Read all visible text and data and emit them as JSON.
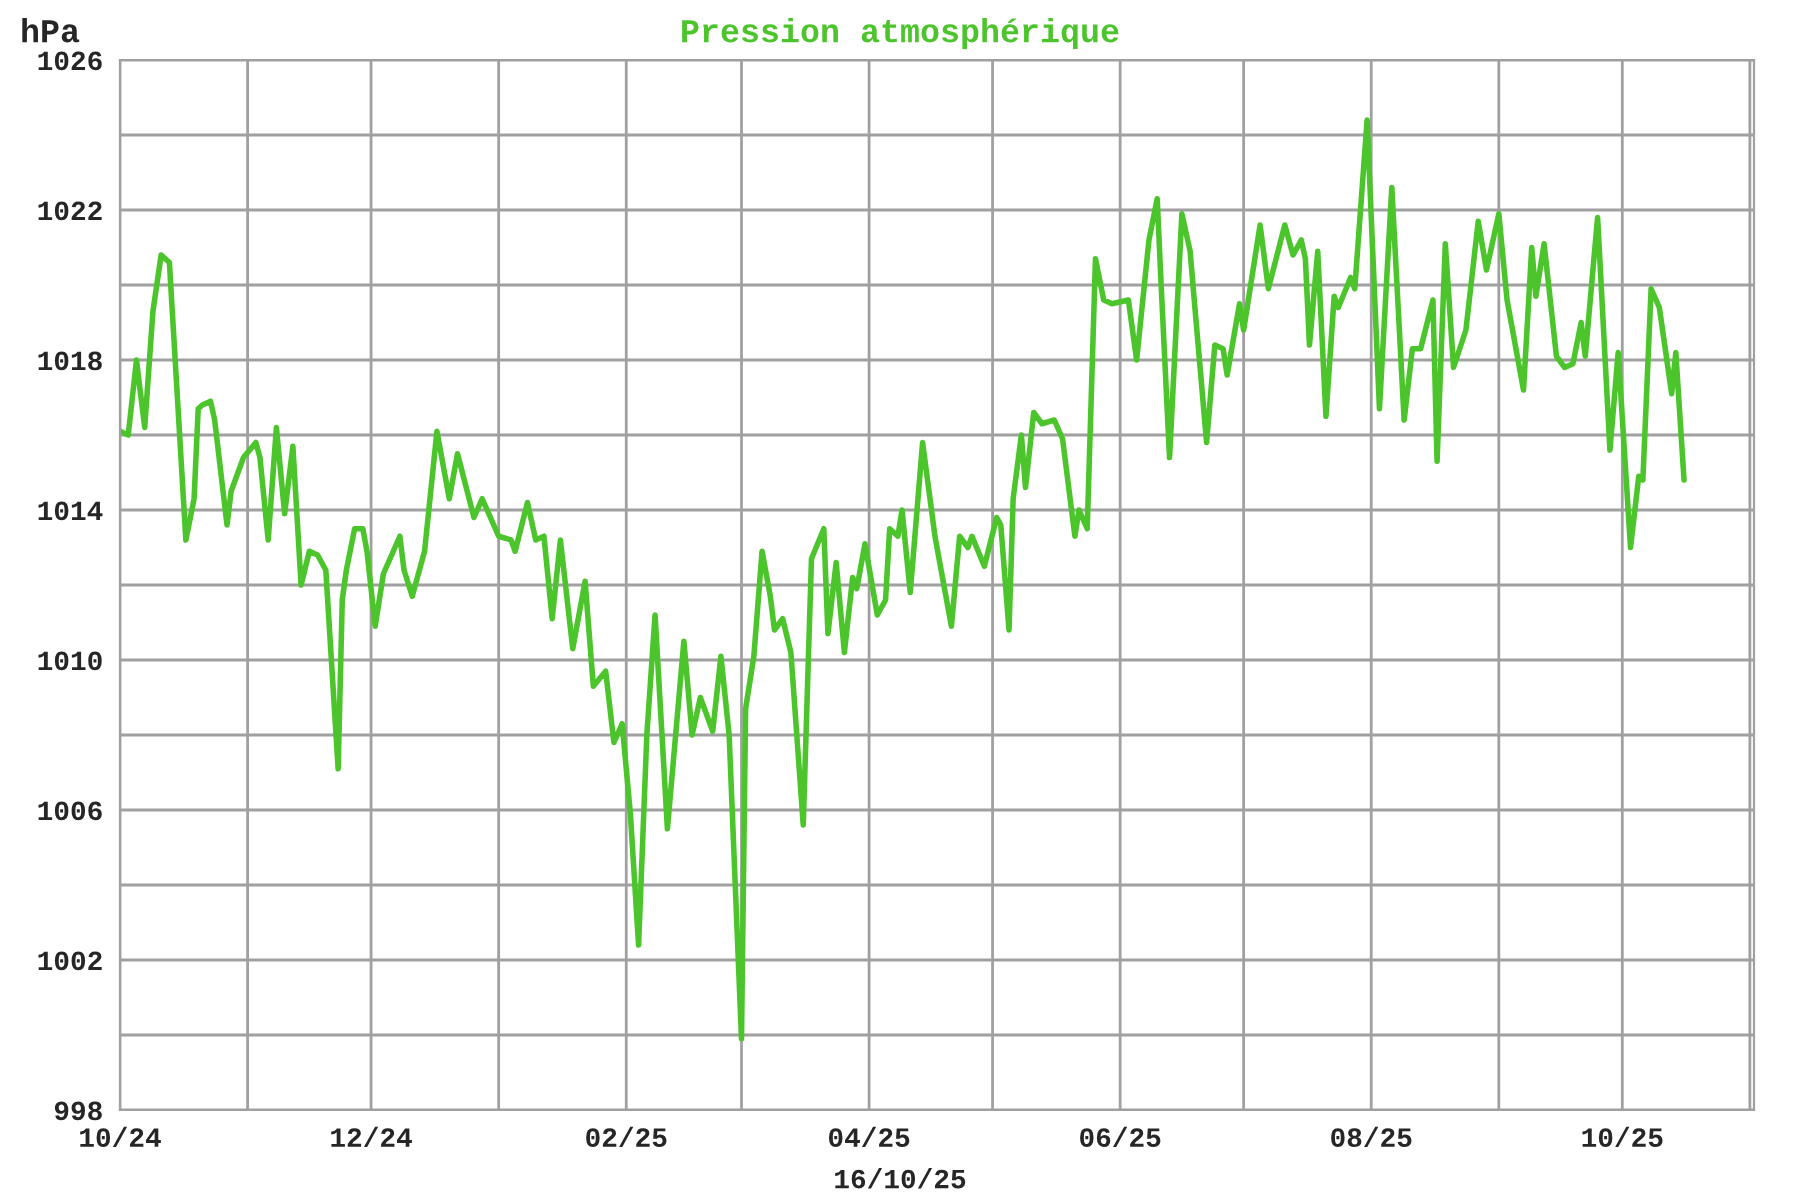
{
  "chart_data": {
    "type": "line",
    "title": "Pression atmosphérique",
    "ylabel": "hPa",
    "annotations": [
      "16/10/25"
    ],
    "x": [
      "2024-10-01",
      "2024-10-03",
      "2024-10-05",
      "2024-10-07",
      "2024-10-09",
      "2024-10-11",
      "2024-10-13",
      "2024-10-17",
      "2024-10-19",
      "2024-10-20",
      "2024-10-21",
      "2024-10-23",
      "2024-10-24",
      "2024-10-27",
      "2024-10-28",
      "2024-10-31",
      "2024-11-03",
      "2024-11-04",
      "2024-11-06",
      "2024-11-08",
      "2024-11-10",
      "2024-11-12",
      "2024-11-14",
      "2024-11-16",
      "2024-11-18",
      "2024-11-20",
      "2024-11-23",
      "2024-11-24",
      "2024-11-25",
      "2024-11-27",
      "2024-11-29",
      "2024-11-30",
      "2024-12-02",
      "2024-12-04",
      "2024-12-08",
      "2024-12-09",
      "2024-12-11",
      "2024-12-14",
      "2024-12-17",
      "2024-12-20",
      "2024-12-22",
      "2024-12-26",
      "2024-12-28",
      "2025-01-01",
      "2025-01-04",
      "2025-01-05",
      "2025-01-08",
      "2025-01-10",
      "2025-01-12",
      "2025-01-14",
      "2025-01-16",
      "2025-01-19",
      "2025-01-22",
      "2025-01-24",
      "2025-01-27",
      "2025-01-29",
      "2025-01-31",
      "2025-02-02",
      "2025-02-04",
      "2025-02-06",
      "2025-02-08",
      "2025-02-11",
      "2025-02-15",
      "2025-02-17",
      "2025-02-19",
      "2025-02-22",
      "2025-02-24",
      "2025-02-26",
      "2025-03-01",
      "2025-03-02",
      "2025-03-04",
      "2025-03-06",
      "2025-03-08",
      "2025-03-09",
      "2025-03-11",
      "2025-03-13",
      "2025-03-16",
      "2025-03-18",
      "2025-03-21",
      "2025-03-22",
      "2025-03-24",
      "2025-03-26",
      "2025-03-28",
      "2025-03-29",
      "2025-03-31",
      "2025-04-03",
      "2025-04-05",
      "2025-04-06",
      "2025-04-08",
      "2025-04-09",
      "2025-04-11",
      "2025-04-14",
      "2025-04-17",
      "2025-04-21",
      "2025-04-23",
      "2025-04-25",
      "2025-04-26",
      "2025-04-29",
      "2025-05-02",
      "2025-05-03",
      "2025-05-05",
      "2025-05-06",
      "2025-05-08",
      "2025-05-09",
      "2025-05-11",
      "2025-05-13",
      "2025-05-16",
      "2025-05-18",
      "2025-05-21",
      "2025-05-22",
      "2025-05-24",
      "2025-05-26",
      "2025-05-28",
      "2025-05-30",
      "2025-06-03",
      "2025-06-05",
      "2025-06-08",
      "2025-06-10",
      "2025-06-11",
      "2025-06-13",
      "2025-06-16",
      "2025-06-18",
      "2025-06-19",
      "2025-06-22",
      "2025-06-24",
      "2025-06-26",
      "2025-06-27",
      "2025-06-30",
      "2025-07-01",
      "2025-07-05",
      "2025-07-07",
      "2025-07-11",
      "2025-07-13",
      "2025-07-15",
      "2025-07-16",
      "2025-07-17",
      "2025-07-19",
      "2025-07-21",
      "2025-07-23",
      "2025-07-24",
      "2025-07-27",
      "2025-07-28",
      "2025-07-31",
      "2025-08-03",
      "2025-08-06",
      "2025-08-09",
      "2025-08-11",
      "2025-08-13",
      "2025-08-16",
      "2025-08-17",
      "2025-08-19",
      "2025-08-21",
      "2025-08-24",
      "2025-08-27",
      "2025-08-29",
      "2025-09-01",
      "2025-09-03",
      "2025-09-07",
      "2025-09-09",
      "2025-09-10",
      "2025-09-12",
      "2025-09-15",
      "2025-09-17",
      "2025-09-19",
      "2025-09-21",
      "2025-09-22",
      "2025-09-25",
      "2025-09-28",
      "2025-09-30",
      "2025-10-03",
      "2025-10-05",
      "2025-10-06",
      "2025-10-08",
      "2025-10-10",
      "2025-10-13",
      "2025-10-14",
      "2025-10-16"
    ],
    "series": [
      {
        "color": "#4cc52c",
        "values": [
          1016.1,
          1016.0,
          1018.0,
          1016.2,
          1019.3,
          1020.8,
          1020.6,
          1013.2,
          1014.3,
          1016.7,
          1016.8,
          1016.9,
          1016.4,
          1013.6,
          1014.5,
          1015.4,
          1015.8,
          1015.4,
          1013.2,
          1016.2,
          1013.9,
          1015.7,
          1012.0,
          1012.9,
          1012.8,
          1012.4,
          1007.1,
          1011.6,
          1012.4,
          1013.5,
          1013.5,
          1012.9,
          1010.9,
          1012.3,
          1013.3,
          1012.4,
          1011.7,
          1012.9,
          1016.1,
          1014.3,
          1015.5,
          1013.8,
          1014.3,
          1013.3,
          1013.2,
          1012.9,
          1014.2,
          1013.2,
          1013.3,
          1011.1,
          1013.2,
          1010.3,
          1012.1,
          1009.3,
          1009.7,
          1007.8,
          1008.3,
          1005.9,
          1002.4,
          1008.0,
          1011.2,
          1005.5,
          1010.5,
          1008.0,
          1009.0,
          1008.1,
          1010.1,
          1008.0,
          999.9,
          1008.7,
          1010.1,
          1012.9,
          1011.7,
          1010.8,
          1011.1,
          1010.2,
          1005.6,
          1012.7,
          1013.5,
          1010.7,
          1012.6,
          1010.2,
          1012.2,
          1011.9,
          1013.1,
          1011.2,
          1011.6,
          1013.5,
          1013.3,
          1014.0,
          1011.8,
          1015.8,
          1013.3,
          1010.9,
          1013.3,
          1013.0,
          1013.3,
          1012.5,
          1013.8,
          1013.6,
          1010.8,
          1014.3,
          1016.0,
          1014.6,
          1016.6,
          1016.3,
          1016.4,
          1015.9,
          1013.3,
          1014.0,
          1013.5,
          1020.7,
          1019.6,
          1019.5,
          1019.6,
          1018.0,
          1021.2,
          1022.3,
          1019.9,
          1015.4,
          1021.9,
          1020.9,
          1019.6,
          1015.8,
          1018.4,
          1018.3,
          1017.6,
          1019.5,
          1018.8,
          1021.6,
          1019.9,
          1021.6,
          1020.8,
          1021.2,
          1020.7,
          1018.4,
          1020.9,
          1016.5,
          1019.7,
          1019.4,
          1020.2,
          1019.9,
          1024.4,
          1016.7,
          1022.6,
          1016.4,
          1018.3,
          1018.3,
          1019.6,
          1015.3,
          1021.1,
          1017.8,
          1018.8,
          1021.7,
          1020.4,
          1021.9,
          1019.6,
          1017.2,
          1021.0,
          1019.7,
          1021.1,
          1018.1,
          1017.8,
          1017.9,
          1019.0,
          1018.1,
          1021.8,
          1015.6,
          1018.2,
          1013.0,
          1014.9,
          1014.8,
          1019.9,
          1019.4,
          1017.1,
          1018.2,
          1014.8
        ]
      }
    ],
    "xlim": [
      "2024-10-01",
      "2025-11-02"
    ],
    "xticks": [
      {
        "value": "2024-10-01",
        "label": "10/24"
      },
      {
        "value": "2024-11-01",
        "label": null
      },
      {
        "value": "2024-12-01",
        "label": "12/24"
      },
      {
        "value": "2025-01-01",
        "label": null
      },
      {
        "value": "2025-02-01",
        "label": "02/25"
      },
      {
        "value": "2025-03-01",
        "label": null
      },
      {
        "value": "2025-04-01",
        "label": "04/25"
      },
      {
        "value": "2025-05-01",
        "label": null
      },
      {
        "value": "2025-06-01",
        "label": "06/25"
      },
      {
        "value": "2025-07-01",
        "label": null
      },
      {
        "value": "2025-08-01",
        "label": "08/25"
      },
      {
        "value": "2025-09-01",
        "label": null
      },
      {
        "value": "2025-10-01",
        "label": "10/25"
      },
      {
        "value": "2025-11-01",
        "label": null
      }
    ],
    "ylim": [
      998,
      1026
    ],
    "yticks": [
      998,
      {
        "value": 1000,
        "label": null
      },
      1002,
      {
        "value": 1004,
        "label": null
      },
      1006,
      {
        "value": 1008,
        "label": null
      },
      1010,
      {
        "value": 1012,
        "label": null
      },
      1014,
      {
        "value": 1016,
        "label": null
      },
      1018,
      {
        "value": 1020,
        "label": null
      },
      1022,
      {
        "value": 1024,
        "label": null
      },
      1026
    ],
    "grid": true,
    "marker": "none",
    "line_style": "solid"
  }
}
